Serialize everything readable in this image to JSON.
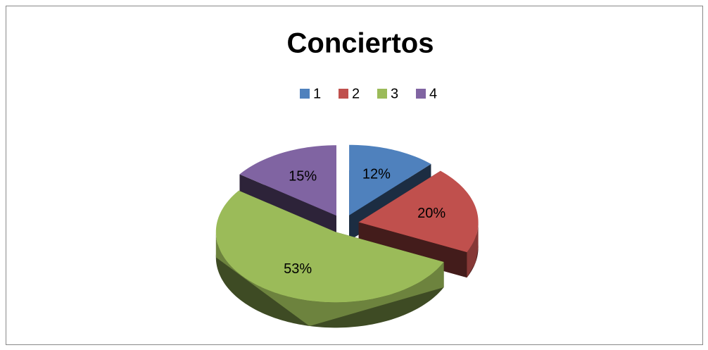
{
  "chart_data": {
    "type": "pie",
    "title": "Conciertos",
    "categories": [
      "1",
      "2",
      "3",
      "4"
    ],
    "values": [
      12,
      20,
      53,
      15
    ],
    "value_labels": [
      "12%",
      "20%",
      "53%",
      "15%"
    ],
    "colors": [
      "#4f81bd",
      "#c0504d",
      "#9bbb59",
      "#8064a2"
    ],
    "legend": "top"
  }
}
